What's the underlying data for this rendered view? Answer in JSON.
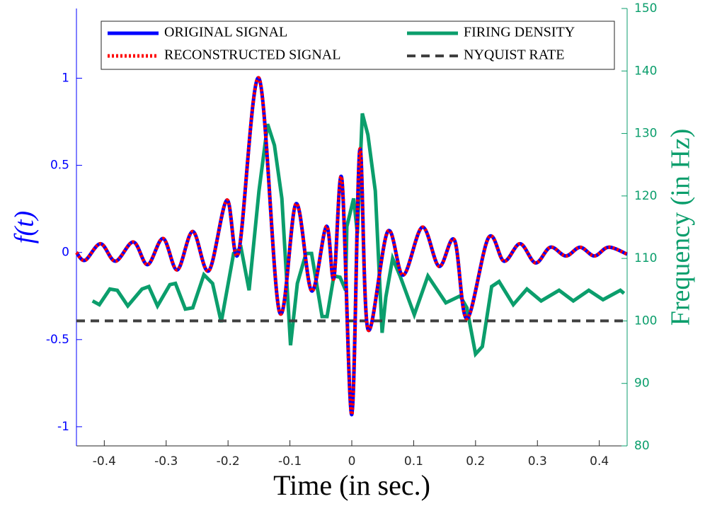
{
  "chart_data": {
    "type": "line",
    "xlabel": "Time (in sec.)",
    "ylabel": "f(t)",
    "y2label": "Frequency (in Hz)",
    "xlim": [
      -0.445,
      0.445
    ],
    "xticks": [
      -0.4,
      -0.3,
      -0.2,
      -0.1,
      0,
      0.1,
      0.2,
      0.3,
      0.4
    ],
    "ylim": [
      -1.11,
      1.4
    ],
    "yticks": [
      -1,
      -0.5,
      0,
      0.5,
      1
    ],
    "y2lim": [
      80,
      150
    ],
    "y2ticks": [
      80,
      90,
      100,
      110,
      120,
      130,
      140,
      150
    ],
    "legend": "top",
    "series": [
      {
        "name": "ORIGINAL SIGNAL",
        "color": "#0000ff",
        "style": "solid",
        "smooth": true,
        "x": [
          -0.445,
          -0.431,
          -0.406,
          -0.382,
          -0.353,
          -0.33,
          -0.305,
          -0.282,
          -0.257,
          -0.231,
          -0.202,
          -0.183,
          -0.15,
          -0.117,
          -0.09,
          -0.065,
          -0.041,
          -0.029,
          -0.016,
          0,
          0.013,
          0.026,
          0.058,
          0.083,
          0.114,
          0.141,
          0.166,
          0.186,
          0.221,
          0.246,
          0.272,
          0.297,
          0.321,
          0.346,
          0.369,
          0.392,
          0.415,
          0.445
        ],
        "values": [
          0,
          -0.045,
          0.05,
          -0.05,
          0.06,
          -0.07,
          0.08,
          -0.1,
          0.12,
          -0.105,
          0.3,
          0.0,
          1.0,
          -0.34,
          0.28,
          -0.22,
          0.15,
          -0.15,
          0.42,
          -0.93,
          0.59,
          -0.44,
          0.12,
          -0.13,
          0.145,
          -0.08,
          0.07,
          -0.38,
          0.085,
          -0.05,
          0.05,
          -0.06,
          0.03,
          -0.02,
          0.03,
          -0.02,
          0.03,
          -0.01
        ]
      },
      {
        "name": "RECONSTRUCTED SIGNAL",
        "color": "#ff0000",
        "style": "dotted",
        "smooth": true,
        "x": [
          -0.445,
          -0.431,
          -0.406,
          -0.382,
          -0.353,
          -0.33,
          -0.305,
          -0.282,
          -0.257,
          -0.231,
          -0.202,
          -0.183,
          -0.15,
          -0.117,
          -0.09,
          -0.065,
          -0.041,
          -0.029,
          -0.016,
          0,
          0.013,
          0.026,
          0.058,
          0.083,
          0.114,
          0.141,
          0.166,
          0.186,
          0.221,
          0.246,
          0.272,
          0.297,
          0.321,
          0.346,
          0.369,
          0.392,
          0.415,
          0.445
        ],
        "values": [
          0,
          -0.045,
          0.05,
          -0.05,
          0.06,
          -0.07,
          0.08,
          -0.1,
          0.12,
          -0.105,
          0.3,
          0.0,
          1.0,
          -0.34,
          0.28,
          -0.22,
          0.15,
          -0.15,
          0.42,
          -0.93,
          0.59,
          -0.44,
          0.12,
          -0.13,
          0.145,
          -0.08,
          0.07,
          -0.38,
          0.085,
          -0.05,
          0.05,
          -0.06,
          0.03,
          -0.02,
          0.03,
          -0.02,
          0.03,
          -0.01
        ]
      },
      {
        "name": "FIRING DENSITY",
        "color": "#0b9e6c",
        "style": "solid",
        "axis": "y2",
        "smooth": false,
        "x": [
          -0.419,
          -0.408,
          -0.391,
          -0.379,
          -0.362,
          -0.339,
          -0.328,
          -0.314,
          -0.294,
          -0.285,
          -0.269,
          -0.257,
          -0.239,
          -0.225,
          -0.211,
          -0.191,
          -0.179,
          -0.166,
          -0.15,
          -0.136,
          -0.125,
          -0.113,
          -0.099,
          -0.088,
          -0.074,
          -0.065,
          -0.048,
          -0.04,
          -0.029,
          -0.019,
          -0.01,
          -0.008,
          0.003,
          0.009,
          0.017,
          0.026,
          0.038,
          0.049,
          0.055,
          0.066,
          0.078,
          0.101,
          0.123,
          0.152,
          0.175,
          0.186,
          0.2,
          0.211,
          0.226,
          0.238,
          0.261,
          0.283,
          0.306,
          0.335,
          0.358,
          0.383,
          0.406,
          0.434,
          0.44
        ],
        "values": [
          103.2,
          102.6,
          105.1,
          104.9,
          102.4,
          105.1,
          105.5,
          102.4,
          105.8,
          106,
          101.9,
          102.1,
          107.4,
          106,
          99.8,
          110.8,
          111.7,
          104.9,
          120.8,
          131.5,
          128.1,
          119.6,
          96.1,
          106,
          110.8,
          110.8,
          100.7,
          100.7,
          107.2,
          107,
          104.9,
          115.1,
          119.6,
          114,
          133.2,
          129.8,
          120.8,
          98.1,
          103.8,
          110,
          107.2,
          101,
          107.2,
          102.9,
          104,
          102.1,
          94.7,
          95.9,
          105.5,
          106.3,
          102.6,
          105.1,
          103.2,
          104.9,
          103.2,
          104.9,
          103.4,
          104.9,
          104.4
        ]
      },
      {
        "name": "NYQUIST RATE",
        "color": "#404040",
        "style": "dashed",
        "axis": "y2",
        "smooth": false,
        "x": [
          -0.445,
          0.445
        ],
        "values": [
          100,
          100
        ]
      }
    ]
  }
}
